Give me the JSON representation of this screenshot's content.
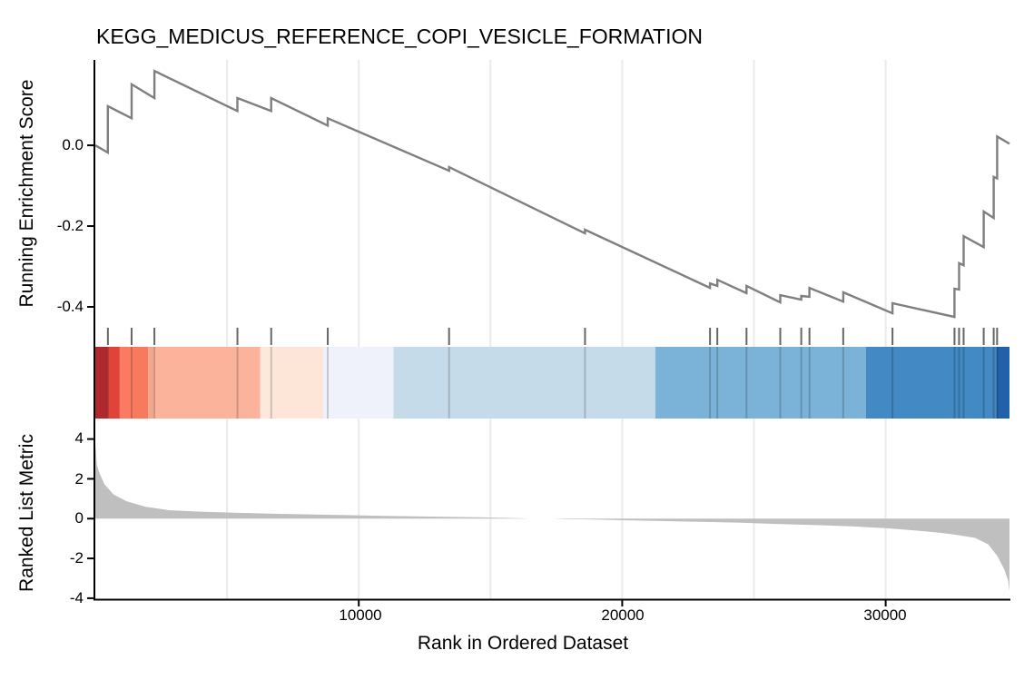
{
  "title": "KEGG_MEDICUS_REFERENCE_COPI_VESICLE_FORMATION",
  "axes": {
    "es_title": "Running Enrichment Score",
    "metric_title": "Ranked List Metric",
    "x_title": "Rank in Ordered Dataset",
    "es_ticks": [
      "0.0",
      "-0.2",
      "-0.4"
    ],
    "metric_ticks": [
      "4",
      "2",
      "0",
      "-2",
      "-4"
    ],
    "x_ticks": [
      "10000",
      "20000",
      "30000"
    ]
  },
  "colors": {
    "curve": "#7f7f7f",
    "rug": "#666666",
    "metric_fill": "#bfbfbf",
    "grid": "#ebebeb",
    "axis": "#000000",
    "band_hit_overlay": "#000000"
  },
  "chart_data": {
    "type": "line",
    "title": "KEGG_MEDICUS_REFERENCE_COPI_VESICLE_FORMATION",
    "xlabel": "Rank in Ordered Dataset",
    "xlim": [
      0,
      34700
    ],
    "x_tick_values": [
      10000,
      20000,
      30000
    ],
    "gridlines_x": [
      5000,
      10000,
      15000,
      20000,
      25000,
      30000
    ],
    "grid": "vertical-only",
    "legend": "none",
    "panels": {
      "running_enrichment_score": {
        "ylabel": "Running Enrichment Score",
        "ylim": [
          -0.445,
          0.207
        ],
        "yticks": [
          0.0,
          -0.2,
          -0.4
        ],
        "color": "#7f7f7f",
        "peak_es": 0.184,
        "min_es": -0.425,
        "points": [
          [
            0,
            0.0
          ],
          [
            477,
            -0.018
          ],
          [
            477,
            0.097
          ],
          [
            1377,
            0.067
          ],
          [
            1377,
            0.151
          ],
          [
            2243,
            0.117
          ],
          [
            2243,
            0.184
          ],
          [
            5394,
            0.085
          ],
          [
            5394,
            0.117
          ],
          [
            6676,
            0.085
          ],
          [
            6676,
            0.117
          ],
          [
            8823,
            0.049
          ],
          [
            8823,
            0.067
          ],
          [
            13428,
            -0.063
          ],
          [
            13428,
            -0.054
          ],
          [
            18588,
            -0.218
          ],
          [
            18588,
            -0.209
          ],
          [
            23333,
            -0.353
          ],
          [
            23333,
            -0.342
          ],
          [
            23610,
            -0.348
          ],
          [
            23610,
            -0.333
          ],
          [
            24718,
            -0.366
          ],
          [
            24718,
            -0.348
          ],
          [
            25999,
            -0.389
          ],
          [
            25999,
            -0.371
          ],
          [
            26796,
            -0.382
          ],
          [
            26796,
            -0.373
          ],
          [
            27107,
            -0.375
          ],
          [
            27107,
            -0.353
          ],
          [
            28389,
            -0.387
          ],
          [
            28389,
            -0.364
          ],
          [
            30259,
            -0.416
          ],
          [
            30259,
            -0.391
          ],
          [
            32613,
            -0.425
          ],
          [
            32613,
            -0.355
          ],
          [
            32786,
            -0.357
          ],
          [
            32786,
            -0.292
          ],
          [
            32959,
            -0.297
          ],
          [
            32959,
            -0.225
          ],
          [
            33721,
            -0.252
          ],
          [
            33721,
            -0.164
          ],
          [
            34100,
            -0.18
          ],
          [
            34100,
            -0.078
          ],
          [
            34230,
            -0.082
          ],
          [
            34230,
            0.022
          ],
          [
            34700,
            0.004
          ]
        ]
      },
      "hit_rug": {
        "color": "#666666",
        "ranks": [
          477,
          1377,
          2243,
          5394,
          6676,
          8823,
          13428,
          18588,
          23333,
          23610,
          24718,
          25999,
          26796,
          27107,
          28389,
          30259,
          32613,
          32786,
          32959,
          33721,
          34100,
          34230
        ]
      },
      "rank_color_band": {
        "segments": [
          {
            "from": 0,
            "to": 477,
            "color": "#ae282d"
          },
          {
            "from": 477,
            "to": 927,
            "color": "#e04338"
          },
          {
            "from": 927,
            "to": 1447,
            "color": "#fa7b61"
          },
          {
            "from": 1447,
            "to": 2001,
            "color": "#f87a5e"
          },
          {
            "from": 2001,
            "to": 2209,
            "color": "#f1a78d"
          },
          {
            "from": 2209,
            "to": 6260,
            "color": "#fbb39c"
          },
          {
            "from": 6260,
            "to": 6641,
            "color": "#fce9dc"
          },
          {
            "from": 6641,
            "to": 8650,
            "color": "#fde5d8"
          },
          {
            "from": 8650,
            "to": 11316,
            "color": "#f0f2fb"
          },
          {
            "from": 11316,
            "to": 21254,
            "color": "#c6dbe9"
          },
          {
            "from": 21254,
            "to": 29254,
            "color": "#7ab3d7"
          },
          {
            "from": 29254,
            "to": 34206,
            "color": "#4389c3"
          },
          {
            "from": 34206,
            "to": 34700,
            "color": "#2061a9"
          }
        ]
      },
      "ranked_list_metric": {
        "ylabel": "Ranked List Metric",
        "ylim": [
          -4.05,
          4.62
        ],
        "yticks": [
          4,
          2,
          0,
          -2,
          -4
        ],
        "fill": "#bfbfbf",
        "points": [
          [
            0,
            3.8
          ],
          [
            60,
            2.7
          ],
          [
            150,
            2.3
          ],
          [
            350,
            1.72
          ],
          [
            700,
            1.2
          ],
          [
            1200,
            0.87
          ],
          [
            1900,
            0.6
          ],
          [
            2800,
            0.42
          ],
          [
            4000,
            0.35
          ],
          [
            5000,
            0.31
          ],
          [
            7000,
            0.24
          ],
          [
            9000,
            0.19
          ],
          [
            11000,
            0.14
          ],
          [
            13000,
            0.1
          ],
          [
            14500,
            0.07
          ],
          [
            15500,
            0.04
          ],
          [
            16200,
            0.015
          ],
          [
            16400,
            0.0
          ],
          [
            17400,
            0.0
          ],
          [
            17800,
            -0.02
          ],
          [
            19000,
            -0.05
          ],
          [
            20000,
            -0.08
          ],
          [
            21500,
            -0.12
          ],
          [
            23000,
            -0.16
          ],
          [
            24500,
            -0.21
          ],
          [
            26000,
            -0.27
          ],
          [
            27500,
            -0.33
          ],
          [
            28700,
            -0.39
          ],
          [
            30000,
            -0.48
          ],
          [
            31000,
            -0.58
          ],
          [
            32000,
            -0.7
          ],
          [
            32600,
            -0.8
          ],
          [
            33400,
            -0.97
          ],
          [
            33900,
            -1.3
          ],
          [
            34250,
            -1.9
          ],
          [
            34500,
            -2.55
          ],
          [
            34650,
            -3.1
          ],
          [
            34700,
            -3.65
          ]
        ]
      }
    }
  }
}
